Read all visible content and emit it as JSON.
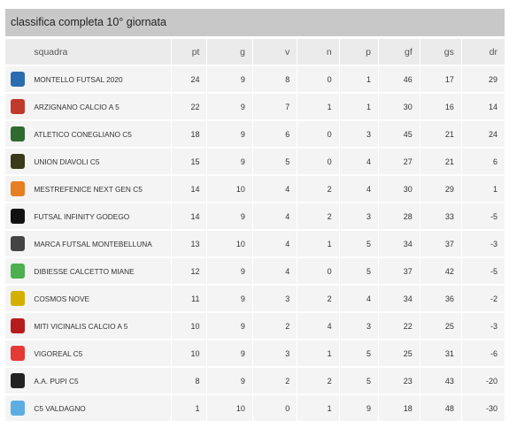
{
  "title": "classifica completa 10° giornata",
  "columns": [
    "squadra",
    "pt",
    "g",
    "v",
    "n",
    "p",
    "gf",
    "gs",
    "dr"
  ],
  "rows": [
    {
      "team": "MONTELLO FUTSAL 2020",
      "pt": "24",
      "g": "9",
      "v": "8",
      "n": "0",
      "p": "1",
      "gf": "46",
      "gs": "17",
      "dr": "29",
      "crest_color": "#2b6cb0",
      "crest_icon": "montello-crest-icon"
    },
    {
      "team": "ARZIGNANO CALCIO A 5",
      "pt": "22",
      "g": "9",
      "v": "7",
      "n": "1",
      "p": "1",
      "gf": "30",
      "gs": "16",
      "dr": "14",
      "crest_color": "#c0392b",
      "crest_icon": "arzignano-crest-icon"
    },
    {
      "team": "ATLETICO CONEGLIANO C5",
      "pt": "18",
      "g": "9",
      "v": "6",
      "n": "0",
      "p": "3",
      "gf": "45",
      "gs": "21",
      "dr": "24",
      "crest_color": "#2f6b2f",
      "crest_icon": "atletico-conegliano-crest-icon"
    },
    {
      "team": "UNION DIAVOLI C5",
      "pt": "15",
      "g": "9",
      "v": "5",
      "n": "0",
      "p": "4",
      "gf": "27",
      "gs": "21",
      "dr": "6",
      "crest_color": "#3a3a1a",
      "crest_icon": "union-diavoli-crest-icon"
    },
    {
      "team": "MESTREFENICE NEXT GEN C5",
      "pt": "14",
      "g": "10",
      "v": "4",
      "n": "2",
      "p": "4",
      "gf": "30",
      "gs": "29",
      "dr": "1",
      "crest_color": "#e67e22",
      "crest_icon": "mestrefenice-crest-icon"
    },
    {
      "team": "FUTSAL INFINITY GODEGO",
      "pt": "14",
      "g": "9",
      "v": "4",
      "n": "2",
      "p": "3",
      "gf": "28",
      "gs": "33",
      "dr": "-5",
      "crest_color": "#111111",
      "crest_icon": "futsal-infinity-crest-icon"
    },
    {
      "team": "MARCA FUTSAL MONTEBELLUNA",
      "pt": "13",
      "g": "10",
      "v": "4",
      "n": "1",
      "p": "5",
      "gf": "34",
      "gs": "37",
      "dr": "-3",
      "crest_color": "#444444",
      "crest_icon": "marca-futsal-crest-icon"
    },
    {
      "team": "DIBIESSE CALCETTO MIANE",
      "pt": "12",
      "g": "9",
      "v": "4",
      "n": "0",
      "p": "5",
      "gf": "37",
      "gs": "42",
      "dr": "-5",
      "crest_color": "#4caf50",
      "crest_icon": "dibiesse-crest-icon"
    },
    {
      "team": "COSMOS NOVE",
      "pt": "11",
      "g": "9",
      "v": "3",
      "n": "2",
      "p": "4",
      "gf": "34",
      "gs": "36",
      "dr": "-2",
      "crest_color": "#d4b000",
      "crest_icon": "cosmos-nove-crest-icon"
    },
    {
      "team": "MITI VICINALIS CALCIO A 5",
      "pt": "10",
      "g": "9",
      "v": "2",
      "n": "4",
      "p": "3",
      "gf": "22",
      "gs": "25",
      "dr": "-3",
      "crest_color": "#b71c1c",
      "crest_icon": "miti-vicinalis-crest-icon"
    },
    {
      "team": "VIGOREAL C5",
      "pt": "10",
      "g": "9",
      "v": "3",
      "n": "1",
      "p": "5",
      "gf": "25",
      "gs": "31",
      "dr": "-6",
      "crest_color": "#e53935",
      "crest_icon": "vigoreal-crest-icon"
    },
    {
      "team": "A.A. PUPI C5",
      "pt": "8",
      "g": "9",
      "v": "2",
      "n": "2",
      "p": "5",
      "gf": "23",
      "gs": "43",
      "dr": "-20",
      "crest_color": "#222222",
      "crest_icon": "pupi-crest-icon"
    },
    {
      "team": "C5 VALDAGNO",
      "pt": "1",
      "g": "10",
      "v": "0",
      "n": "1",
      "p": "9",
      "gf": "18",
      "gs": "48",
      "dr": "-30",
      "crest_color": "#5dade2",
      "crest_icon": "valdagno-crest-icon"
    }
  ]
}
